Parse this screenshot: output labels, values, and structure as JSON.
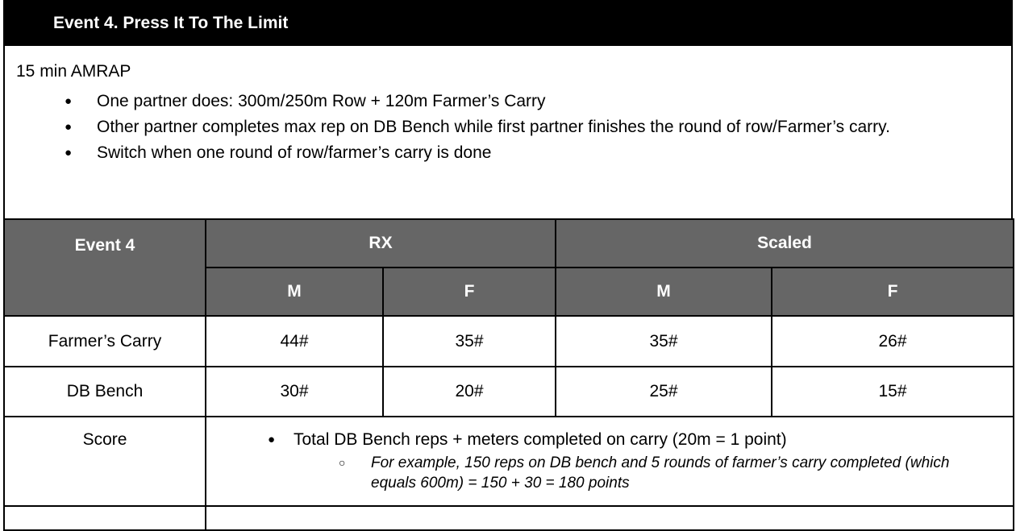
{
  "title": "Event 4. Press It To The Limit",
  "format": "15 min AMRAP",
  "instructions": [
    "One partner does: 300m/250m Row + 120m Farmer’s Carry",
    "Other partner completes max rep on DB Bench while first partner finishes the round of row/Farmer’s carry.",
    "Switch when one round of row/farmer’s carry is done"
  ],
  "table": {
    "corner": "Event 4",
    "groups": [
      "RX",
      "Scaled"
    ],
    "subheaders": [
      "M",
      "F",
      "M",
      "F"
    ],
    "rows": [
      {
        "label": "Farmer’s Carry",
        "values": [
          "44#",
          "35#",
          "35#",
          "26#"
        ]
      },
      {
        "label": "DB Bench",
        "values": [
          "30#",
          "20#",
          "25#",
          "15#"
        ]
      }
    ],
    "score": {
      "label": "Score",
      "bullet": "Total DB Bench reps + meters completed on carry (20m = 1 point)",
      "sub": "For example, 150 reps on DB bench and 5 rounds of farmer’s carry completed (which equals 600m) = 150 + 30 = 180 points"
    }
  }
}
